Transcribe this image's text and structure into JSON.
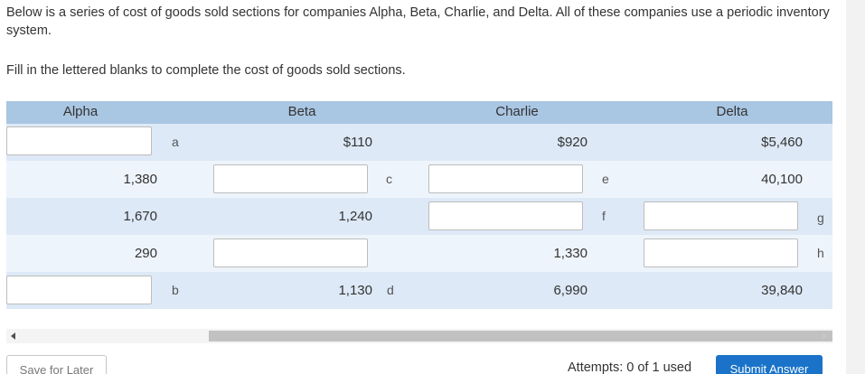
{
  "intro_text": "Below is a series of cost of goods sold sections for companies Alpha, Beta, Charlie, and Delta. All of these companies use a periodic inventory system.",
  "instruction_text": "Fill in the lettered blanks to complete the cost of goods sold sections.",
  "table": {
    "headers": [
      "Alpha",
      "Beta",
      "Charlie",
      "Delta"
    ],
    "rows": [
      {
        "alpha": "",
        "alpha_letter": "a",
        "beta": "$110",
        "beta_letter": "",
        "charlie": "$920",
        "charlie_letter": "",
        "delta": "$5,460",
        "delta_letter": ""
      },
      {
        "alpha": "1,380",
        "alpha_letter": "",
        "beta": "",
        "beta_letter": "c",
        "charlie": "",
        "charlie_letter": "e",
        "delta": "40,100",
        "delta_letter": ""
      },
      {
        "alpha": "1,670",
        "alpha_letter": "",
        "beta": "1,240",
        "beta_letter": "",
        "charlie": "",
        "charlie_letter": "f",
        "delta": "",
        "delta_letter": "g"
      },
      {
        "alpha": "290",
        "alpha_letter": "",
        "beta": "",
        "beta_letter": "",
        "charlie": "1,330",
        "charlie_letter": "",
        "delta": "",
        "delta_letter": "h"
      },
      {
        "alpha": "",
        "alpha_letter": "b",
        "beta": "1,130",
        "beta_letter": "d",
        "charlie": "6,990",
        "charlie_letter": "",
        "delta": "39,840",
        "delta_letter": ""
      }
    ]
  },
  "footer": {
    "save_label": "Save for Later",
    "attempts_text": "Attempts: 0 of 1 used",
    "submit_label": "Submit Answer"
  },
  "colors": {
    "header_bg": "#a9c6e3",
    "row_odd_bg": "#dde9f6",
    "row_even_bg": "#eef4fb",
    "submit_bg": "#1a73c8"
  }
}
